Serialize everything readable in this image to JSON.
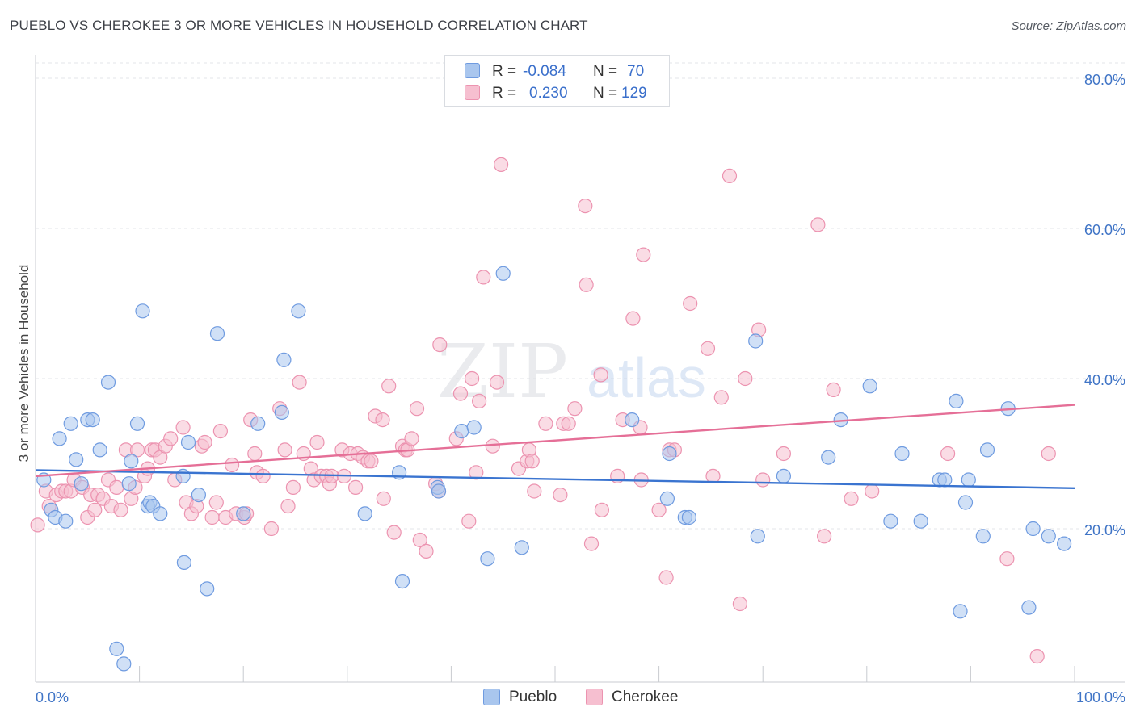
{
  "title": "PUEBLO VS CHEROKEE 3 OR MORE VEHICLES IN HOUSEHOLD CORRELATION CHART",
  "source": "Source: ZipAtlas.com",
  "watermark": {
    "zip": "ZIP",
    "atlas": "atlas"
  },
  "legend": {
    "pueblo": {
      "r_label": "R =",
      "r_value": "-0.084",
      "n_label": "N =",
      "n_value": "70"
    },
    "cherokee": {
      "r_label": "R =",
      "r_value": "0.230",
      "n_label": "N =",
      "n_value": "129"
    }
  },
  "colors": {
    "pueblo_fill": "#a9c6ee",
    "pueblo_stroke": "#6f9be0",
    "pueblo_line": "#3a74d0",
    "cherokee_fill": "#f6bfd0",
    "cherokee_stroke": "#ec93b0",
    "cherokee_line": "#e56f97",
    "axis_text": "#3f74c6",
    "grid": "#e3e5e8"
  },
  "chart_data": {
    "type": "scatter",
    "title": "PUEBLO VS CHEROKEE 3 OR MORE VEHICLES IN HOUSEHOLD CORRELATION CHART",
    "xlabel": "",
    "ylabel": "3 or more Vehicles in Household",
    "xlim": [
      0,
      100
    ],
    "ylim": [
      0,
      80
    ],
    "x_tick_labels": [
      "0.0%",
      "100.0%"
    ],
    "y_ticks": [
      20,
      40,
      60,
      80
    ],
    "y_tick_labels": [
      "20.0%",
      "40.0%",
      "60.0%",
      "80.0%"
    ],
    "grid": true,
    "legend_labels": [
      "Pueblo",
      "Cherokee"
    ],
    "series": [
      {
        "name": "Pueblo",
        "R": -0.084,
        "N": 70,
        "trend": {
          "x": [
            0,
            100
          ],
          "y": [
            27.8,
            25.4
          ]
        },
        "points": [
          [
            0.8,
            26.5
          ],
          [
            1.5,
            22.5
          ],
          [
            1.9,
            21.5
          ],
          [
            2.3,
            32
          ],
          [
            2.9,
            21
          ],
          [
            3.4,
            34
          ],
          [
            3.9,
            29.2
          ],
          [
            4.4,
            26
          ],
          [
            5,
            34.5
          ],
          [
            5.5,
            34.5
          ],
          [
            6.2,
            30.5
          ],
          [
            7,
            39.5
          ],
          [
            7.8,
            4
          ],
          [
            8.5,
            2
          ],
          [
            9,
            26
          ],
          [
            9.2,
            29
          ],
          [
            9.8,
            34
          ],
          [
            10.3,
            49
          ],
          [
            10.8,
            23
          ],
          [
            11,
            23.5
          ],
          [
            11.3,
            23
          ],
          [
            12,
            22
          ],
          [
            14.2,
            27
          ],
          [
            14.3,
            15.5
          ],
          [
            14.7,
            31.5
          ],
          [
            15.7,
            24.5
          ],
          [
            16.5,
            12
          ],
          [
            17.5,
            46
          ],
          [
            20,
            22
          ],
          [
            21.4,
            34
          ],
          [
            23.7,
            35.5
          ],
          [
            23.9,
            42.5
          ],
          [
            25.3,
            49
          ],
          [
            31.7,
            22
          ],
          [
            35,
            27.5
          ],
          [
            35.3,
            13
          ],
          [
            38.7,
            25.5
          ],
          [
            38.8,
            25
          ],
          [
            41,
            33
          ],
          [
            42.2,
            33.5
          ],
          [
            43.5,
            16
          ],
          [
            45,
            54
          ],
          [
            46.8,
            17.5
          ],
          [
            57.4,
            34.5
          ],
          [
            60.8,
            24
          ],
          [
            61,
            30
          ],
          [
            62.5,
            21.5
          ],
          [
            62.9,
            21.5
          ],
          [
            69.3,
            45
          ],
          [
            69.5,
            19
          ],
          [
            72,
            27
          ],
          [
            76.3,
            29.5
          ],
          [
            77.5,
            34.5
          ],
          [
            80.3,
            39
          ],
          [
            82.3,
            21
          ],
          [
            83.4,
            30
          ],
          [
            85.2,
            21
          ],
          [
            87,
            26.5
          ],
          [
            87.5,
            26.5
          ],
          [
            88.6,
            37
          ],
          [
            89,
            9
          ],
          [
            89.5,
            23.5
          ],
          [
            89.8,
            26.5
          ],
          [
            91.2,
            19
          ],
          [
            91.6,
            30.5
          ],
          [
            93.6,
            36
          ],
          [
            95.6,
            9.5
          ],
          [
            96,
            20
          ],
          [
            97.5,
            19
          ],
          [
            99,
            18
          ]
        ]
      },
      {
        "name": "Cherokee",
        "R": 0.23,
        "N": 129,
        "trend": {
          "x": [
            0,
            100
          ],
          "y": [
            27.0,
            36.5
          ]
        },
        "points": [
          [
            0.2,
            20.5
          ],
          [
            1,
            25
          ],
          [
            1.3,
            23
          ],
          [
            2,
            24.5
          ],
          [
            2.5,
            25
          ],
          [
            2.9,
            25
          ],
          [
            3.4,
            25
          ],
          [
            3.7,
            26.5
          ],
          [
            4.5,
            25.5
          ],
          [
            5,
            21.5
          ],
          [
            5.3,
            24.5
          ],
          [
            5.7,
            22.5
          ],
          [
            6,
            24.5
          ],
          [
            6.5,
            24
          ],
          [
            7,
            26.5
          ],
          [
            7.3,
            23
          ],
          [
            7.8,
            25.5
          ],
          [
            8.2,
            22.5
          ],
          [
            8.7,
            30.5
          ],
          [
            9.2,
            24
          ],
          [
            9.6,
            25.5
          ],
          [
            9.8,
            30.5
          ],
          [
            10.5,
            27
          ],
          [
            10.8,
            28
          ],
          [
            11.2,
            30.5
          ],
          [
            11.5,
            30.5
          ],
          [
            12,
            29.5
          ],
          [
            12.5,
            31
          ],
          [
            13,
            32
          ],
          [
            13.4,
            26.5
          ],
          [
            14.2,
            33.5
          ],
          [
            14.5,
            23.5
          ],
          [
            15,
            22
          ],
          [
            15.5,
            23
          ],
          [
            16,
            31
          ],
          [
            16.3,
            31.5
          ],
          [
            17,
            21.5
          ],
          [
            17.4,
            23.5
          ],
          [
            17.8,
            33
          ],
          [
            18.3,
            21.5
          ],
          [
            18.9,
            28.5
          ],
          [
            19.3,
            22
          ],
          [
            20.1,
            21.5
          ],
          [
            20.3,
            22
          ],
          [
            20.7,
            34.5
          ],
          [
            21.1,
            30
          ],
          [
            21.3,
            27.5
          ],
          [
            21.9,
            27
          ],
          [
            22.7,
            20
          ],
          [
            23.5,
            36
          ],
          [
            24,
            30.5
          ],
          [
            24.3,
            23
          ],
          [
            24.8,
            25.5
          ],
          [
            25.4,
            39.5
          ],
          [
            25.8,
            30
          ],
          [
            26.5,
            28
          ],
          [
            26.8,
            26.5
          ],
          [
            27.1,
            31.5
          ],
          [
            27.5,
            27
          ],
          [
            28,
            27
          ],
          [
            28.3,
            26
          ],
          [
            28.5,
            27
          ],
          [
            29.5,
            30.5
          ],
          [
            29.7,
            27
          ],
          [
            30.3,
            30
          ],
          [
            30.8,
            25.5
          ],
          [
            31,
            30
          ],
          [
            31.5,
            29.5
          ],
          [
            32,
            29
          ],
          [
            32.3,
            29
          ],
          [
            32.7,
            35
          ],
          [
            33.4,
            34.5
          ],
          [
            33.5,
            24
          ],
          [
            34,
            39
          ],
          [
            34.5,
            19.5
          ],
          [
            35.3,
            31
          ],
          [
            35.6,
            30.5
          ],
          [
            35.8,
            30.5
          ],
          [
            36.2,
            32
          ],
          [
            36.7,
            36
          ],
          [
            37,
            18.5
          ],
          [
            37.6,
            17
          ],
          [
            38.5,
            26
          ],
          [
            38.8,
            25
          ],
          [
            38.9,
            44.5
          ],
          [
            40.5,
            32
          ],
          [
            40.9,
            38
          ],
          [
            41.7,
            21
          ],
          [
            42,
            40
          ],
          [
            42.4,
            27.5
          ],
          [
            42.7,
            37
          ],
          [
            43.1,
            53.5
          ],
          [
            44,
            31
          ],
          [
            44.4,
            39.5
          ],
          [
            44.8,
            68.5
          ],
          [
            46.5,
            28
          ],
          [
            47.3,
            29
          ],
          [
            47.5,
            30.5
          ],
          [
            47.8,
            29
          ],
          [
            48,
            25
          ],
          [
            49.1,
            34
          ],
          [
            50.5,
            24.5
          ],
          [
            50.8,
            34
          ],
          [
            51.3,
            34
          ],
          [
            51.9,
            36
          ],
          [
            52.9,
            63
          ],
          [
            53,
            52.5
          ],
          [
            53.5,
            18
          ],
          [
            54.4,
            40.5
          ],
          [
            54.5,
            22.5
          ],
          [
            56,
            27
          ],
          [
            56.5,
            34.5
          ],
          [
            57.5,
            48
          ],
          [
            58.2,
            33.5
          ],
          [
            58.3,
            26.5
          ],
          [
            58.5,
            56.5
          ],
          [
            60,
            22.5
          ],
          [
            60.7,
            13.5
          ],
          [
            61,
            30.5
          ],
          [
            61.5,
            30.5
          ],
          [
            63,
            50
          ],
          [
            64.7,
            44
          ],
          [
            65.2,
            27
          ],
          [
            66,
            37.5
          ],
          [
            66.8,
            67
          ],
          [
            67.8,
            10
          ],
          [
            68.3,
            40
          ],
          [
            69.6,
            46.5
          ],
          [
            70,
            26.5
          ],
          [
            72,
            30
          ],
          [
            75.3,
            60.5
          ],
          [
            75.9,
            19
          ],
          [
            76.8,
            38.5
          ],
          [
            78.5,
            24
          ],
          [
            80.5,
            25
          ],
          [
            87.8,
            30
          ],
          [
            93.5,
            16
          ],
          [
            96.4,
            3
          ],
          [
            97.5,
            30
          ]
        ]
      }
    ]
  },
  "bottom_legend": {
    "pueblo": "Pueblo",
    "cherokee": "Cherokee"
  }
}
